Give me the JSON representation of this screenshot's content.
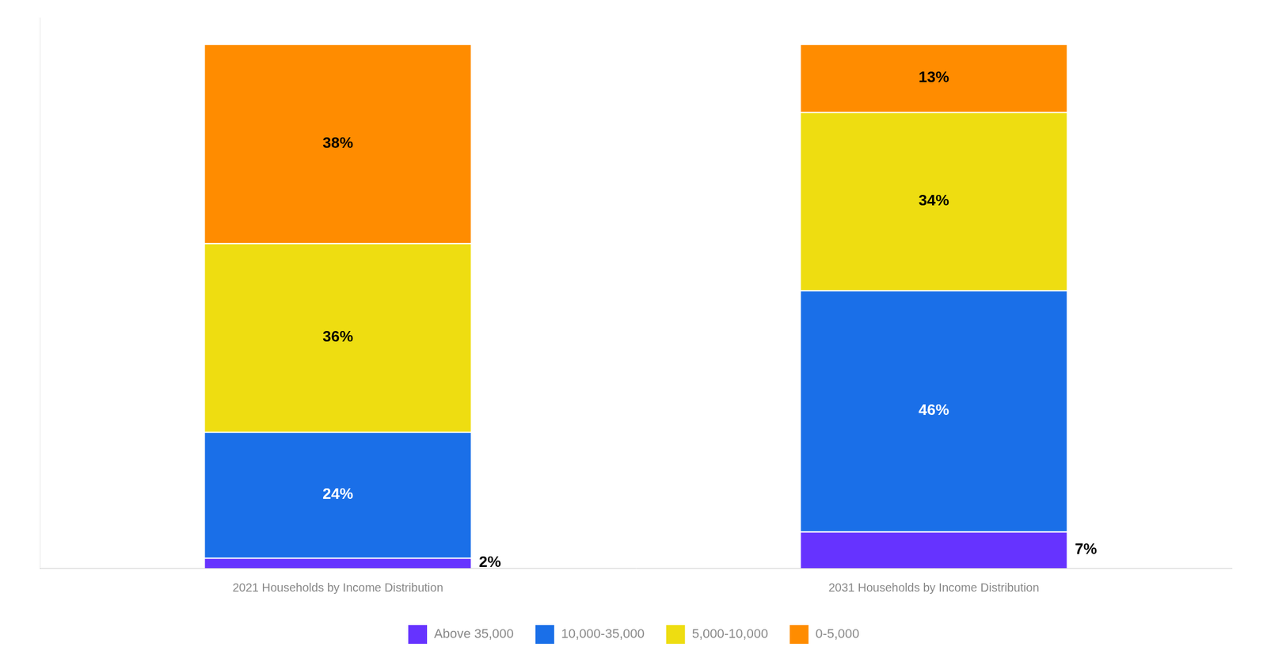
{
  "chart_data": {
    "type": "bar",
    "stacked": true,
    "categories": [
      "2021 Households by Income Distribution",
      "2031 Households by Income Distribution"
    ],
    "series": [
      {
        "name": "Above 35,000",
        "color": "#6633FF",
        "values": [
          2,
          7
        ],
        "value_labels": [
          "2%",
          "7%"
        ]
      },
      {
        "name": "10,000-35,000",
        "color": "#1A6FE8",
        "values": [
          24,
          46
        ],
        "value_labels": [
          "24%",
          "46%"
        ]
      },
      {
        "name": "5,000-10,000",
        "color": "#EEDD11",
        "values": [
          36,
          34
        ],
        "value_labels": [
          "36%",
          "34%"
        ]
      },
      {
        "name": "0-5,000",
        "color": "#FF8C00",
        "values": [
          38,
          13
        ],
        "value_labels": [
          "38%",
          "13%"
        ]
      }
    ],
    "ylim": [
      0,
      105
    ],
    "grid": false,
    "legend": "bottom",
    "data_labels": true,
    "tick_labels": "x"
  }
}
